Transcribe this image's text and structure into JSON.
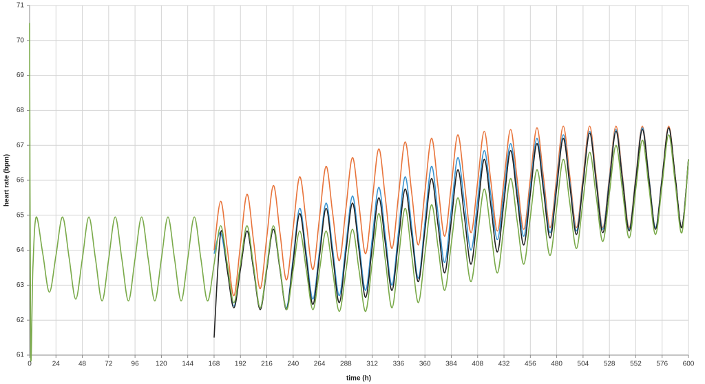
{
  "chart_data": {
    "type": "line",
    "xlabel": "time (h)",
    "ylabel": "heart rate (bpm)",
    "x": [
      0,
      1,
      3,
      6,
      12,
      18,
      24,
      30,
      36,
      42,
      48,
      54,
      60,
      66,
      72,
      78,
      84,
      90,
      96,
      102,
      108,
      114,
      120,
      126,
      132,
      138,
      144,
      150,
      156,
      162,
      168,
      174,
      180,
      186,
      192,
      198,
      204,
      210,
      216,
      222,
      228,
      234,
      240,
      246,
      252,
      258,
      264,
      270,
      276,
      282,
      288,
      294,
      300,
      306,
      312,
      318,
      324,
      330,
      336,
      342,
      348,
      354,
      360,
      366,
      372,
      378,
      384,
      390,
      396,
      402,
      408,
      414,
      420,
      426,
      432,
      438,
      444,
      450,
      456,
      462,
      468,
      474,
      480,
      486,
      492,
      498,
      504,
      510,
      516,
      522,
      528,
      534,
      540,
      546,
      552,
      558,
      564,
      570,
      576,
      582,
      588,
      594,
      600
    ],
    "series": [
      {
        "color": "#e8743b",
        "values": [
          null,
          null,
          null,
          null,
          null,
          null,
          null,
          null,
          null,
          null,
          null,
          null,
          null,
          null,
          null,
          null,
          null,
          null,
          null,
          null,
          null,
          null,
          null,
          null,
          null,
          null,
          null,
          null,
          null,
          null,
          64.0,
          65.4,
          64.05,
          62.7,
          64.15,
          65.6,
          64.25,
          62.9,
          64.38,
          65.85,
          64.5,
          63.15,
          64.63,
          66.1,
          64.78,
          63.45,
          64.93,
          66.4,
          65.05,
          63.7,
          65.18,
          66.65,
          65.28,
          63.9,
          65.4,
          66.9,
          65.48,
          64.05,
          65.58,
          67.1,
          65.63,
          64.15,
          65.68,
          67.2,
          65.8,
          64.4,
          65.85,
          67.3,
          65.9,
          64.5,
          65.95,
          67.4,
          65.98,
          64.55,
          66.0,
          67.45,
          66.03,
          64.6,
          66.05,
          67.5,
          66.08,
          64.65,
          66.1,
          67.55,
          66.1,
          64.65,
          66.1,
          67.55,
          66.1,
          64.65,
          66.1,
          67.55,
          66.1,
          64.65,
          66.1,
          67.55,
          66.1,
          64.65,
          66.1,
          67.55,
          66.1,
          64.65,
          66.6
        ]
      },
      {
        "color": "#3a94d0",
        "values": [
          null,
          null,
          null,
          null,
          null,
          null,
          null,
          null,
          null,
          null,
          null,
          null,
          null,
          null,
          null,
          null,
          null,
          null,
          null,
          null,
          null,
          null,
          null,
          null,
          null,
          null,
          null,
          null,
          null,
          null,
          63.9,
          64.5,
          63.45,
          62.4,
          63.48,
          64.55,
          63.45,
          62.35,
          63.48,
          64.6,
          63.48,
          62.35,
          63.78,
          65.2,
          63.9,
          62.6,
          63.98,
          65.35,
          64.03,
          62.7,
          64.13,
          65.55,
          64.2,
          62.85,
          64.33,
          65.8,
          64.4,
          63.0,
          64.55,
          66.1,
          64.65,
          63.2,
          64.8,
          66.4,
          65.03,
          63.65,
          65.15,
          66.65,
          65.33,
          64.0,
          65.43,
          66.85,
          65.58,
          64.3,
          65.68,
          67.05,
          65.73,
          64.4,
          65.8,
          67.2,
          65.85,
          64.5,
          65.9,
          67.3,
          65.93,
          64.55,
          65.98,
          67.4,
          66.0,
          64.6,
          66.03,
          67.45,
          66.03,
          64.6,
          66.05,
          67.5,
          66.08,
          64.65,
          66.08,
          67.5,
          66.08,
          64.65,
          66.6
        ]
      },
      {
        "color": "#222222",
        "values": [
          null,
          null,
          null,
          null,
          null,
          null,
          null,
          null,
          null,
          null,
          null,
          null,
          null,
          null,
          null,
          null,
          null,
          null,
          null,
          null,
          null,
          null,
          null,
          null,
          null,
          null,
          null,
          null,
          null,
          null,
          61.5,
          64.5,
          63.43,
          62.35,
          63.45,
          64.55,
          63.43,
          62.3,
          63.45,
          64.6,
          63.45,
          62.3,
          63.68,
          65.05,
          63.75,
          62.45,
          63.83,
          65.2,
          63.85,
          62.5,
          63.93,
          65.35,
          64.0,
          62.65,
          64.08,
          65.5,
          64.18,
          62.85,
          64.3,
          65.75,
          64.43,
          63.1,
          64.58,
          66.05,
          64.7,
          63.35,
          64.83,
          66.3,
          64.95,
          63.6,
          65.1,
          66.6,
          65.28,
          63.95,
          65.4,
          66.85,
          65.5,
          64.15,
          65.6,
          67.05,
          65.7,
          64.35,
          65.78,
          67.2,
          65.83,
          64.45,
          65.9,
          67.35,
          65.93,
          64.5,
          65.95,
          67.4,
          65.98,
          64.55,
          66.0,
          67.45,
          66.03,
          64.6,
          66.05,
          67.5,
          66.08,
          64.65,
          66.6
        ]
      },
      {
        "color": "#7aaa4a",
        "values": [
          70.5,
          61.1,
          63.5,
          64.95,
          63.9,
          62.8,
          63.85,
          64.95,
          63.78,
          62.6,
          63.75,
          64.95,
          63.75,
          62.55,
          63.75,
          64.95,
          63.75,
          62.55,
          63.75,
          64.95,
          63.75,
          62.55,
          63.75,
          64.95,
          63.75,
          62.55,
          63.75,
          64.95,
          63.75,
          62.55,
          63.6,
          64.7,
          63.6,
          62.5,
          63.6,
          64.7,
          63.53,
          62.35,
          63.53,
          64.7,
          63.5,
          62.3,
          63.43,
          64.55,
          63.43,
          62.3,
          63.43,
          64.55,
          63.4,
          62.25,
          63.4,
          64.6,
          63.43,
          62.25,
          63.65,
          65.05,
          63.7,
          62.35,
          63.78,
          65.2,
          63.85,
          62.5,
          63.9,
          65.3,
          64.08,
          62.85,
          64.18,
          65.5,
          64.3,
          63.1,
          64.43,
          65.75,
          64.55,
          63.35,
          64.7,
          66.05,
          64.83,
          63.6,
          64.95,
          66.3,
          65.08,
          63.85,
          65.23,
          66.6,
          65.33,
          64.05,
          65.43,
          66.8,
          65.53,
          64.25,
          65.63,
          67.0,
          65.68,
          64.35,
          65.75,
          67.15,
          65.8,
          64.45,
          65.88,
          67.3,
          65.9,
          64.5,
          66.6
        ]
      }
    ],
    "xlim": [
      0,
      600
    ],
    "xticks": [
      0,
      24,
      48,
      72,
      96,
      120,
      144,
      168,
      192,
      216,
      240,
      264,
      288,
      312,
      336,
      360,
      384,
      408,
      432,
      456,
      480,
      504,
      528,
      552,
      576,
      600
    ],
    "ylim": [
      61,
      71
    ],
    "yticks": [
      61,
      62,
      63,
      64,
      65,
      66,
      67,
      68,
      69,
      70,
      71
    ],
    "grid": true
  }
}
